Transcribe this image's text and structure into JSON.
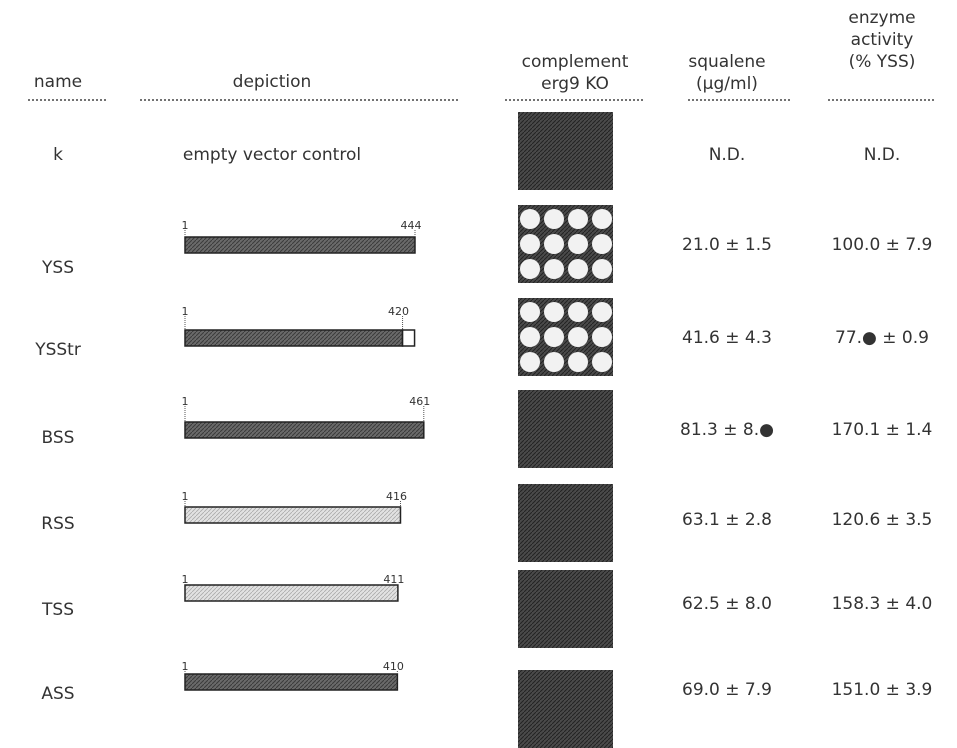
{
  "header": {
    "name": "name",
    "depiction": "depiction",
    "complement": [
      "complement",
      "erg9 KO"
    ],
    "squalene": [
      "squalene",
      "(µg/ml)"
    ],
    "activity": [
      "enzyme",
      "activity",
      "(% YSS)"
    ]
  },
  "rows": [
    {
      "name": "k",
      "depiction": "empty vector control",
      "squalene": "N.D.",
      "activity": "N.D."
    },
    {
      "name": "YSS",
      "start": 1,
      "end": 444,
      "squalene": "21.0 ± 1.5",
      "activity": "100.0 ± 7.9"
    },
    {
      "name": "YSStr",
      "start": 1,
      "end": 420,
      "squalene": "41.6 ± 4.3",
      "activity": "77.● ± 0.9"
    },
    {
      "name": "BSS",
      "start": 1,
      "end": 461,
      "squalene": "81.3 ± 8.●",
      "activity": "170.1 ± 1.4"
    },
    {
      "name": "RSS",
      "start": 1,
      "end": 416,
      "squalene": "63.1 ± 2.8",
      "activity": "120.6 ± 3.5"
    },
    {
      "name": "TSS",
      "start": 1,
      "end": 411,
      "squalene": "62.5 ± 8.0",
      "activity": "158.3 ± 4.0"
    },
    {
      "name": "ASS",
      "start": 1,
      "end": 410,
      "squalene": "69.0 ± 7.9",
      "activity": "151.0 ± 3.9"
    }
  ]
}
